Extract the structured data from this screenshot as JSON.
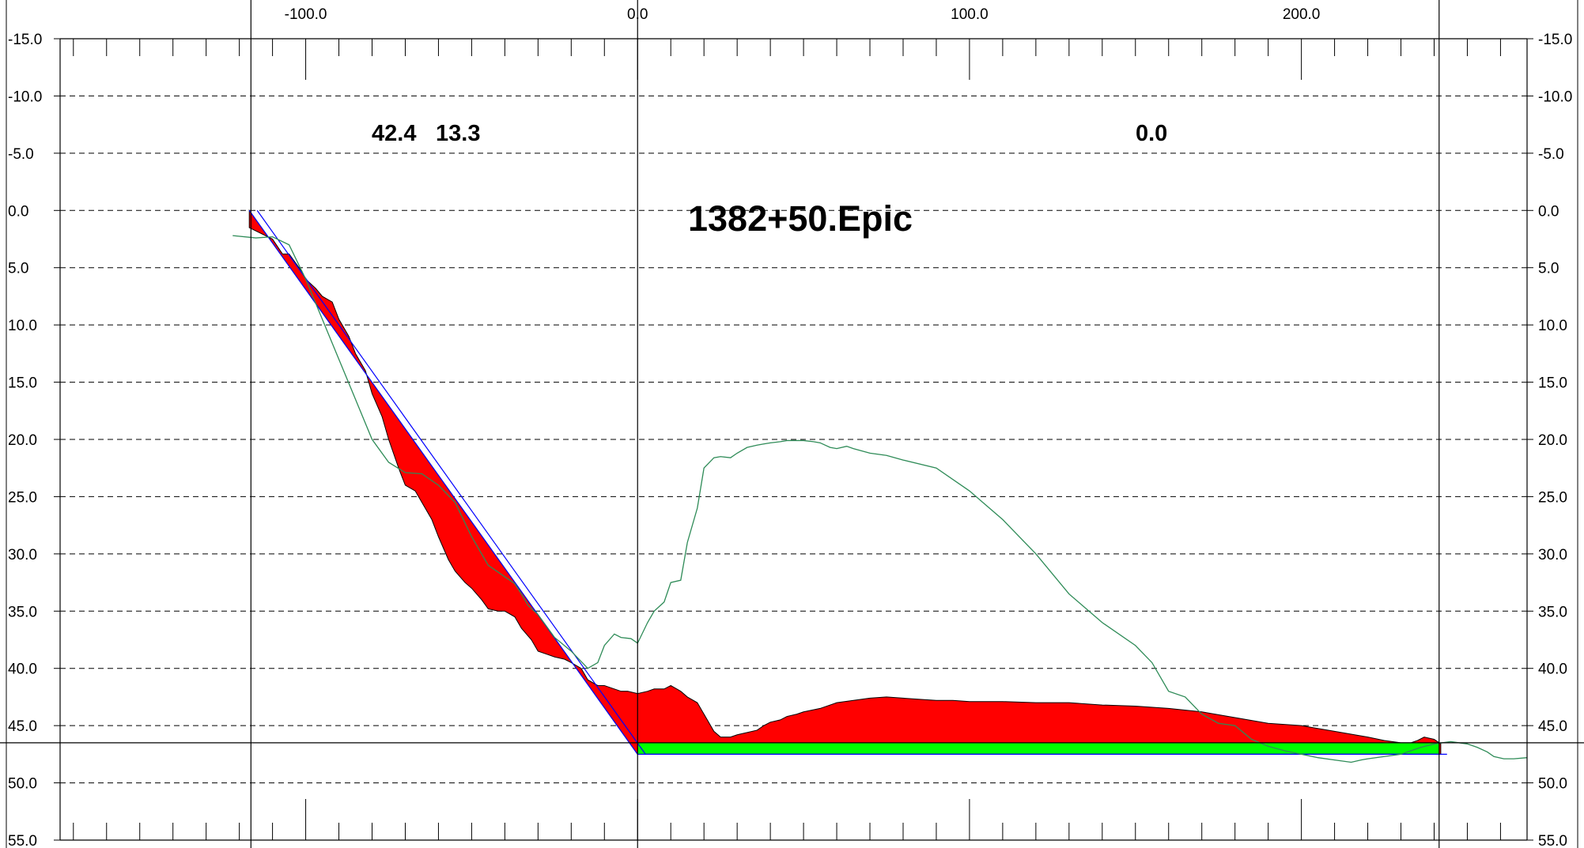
{
  "chart_data": {
    "type": "area",
    "title": "1382+50.Epic",
    "annotations": {
      "left_values": [
        "42.4",
        "13.3"
      ],
      "right_value": "0.0"
    },
    "x_tick_labels": [
      "-100.0",
      "0.0",
      "100.0",
      "200.0"
    ],
    "x_ticks": [
      -100,
      0,
      100,
      200
    ],
    "y_tick_labels": [
      "-15.0",
      "-10.0",
      "-5.0",
      "0.0",
      "5.0",
      "10.0",
      "15.0",
      "20.0",
      "25.0",
      "30.0",
      "35.0",
      "40.0",
      "45.0",
      "50.0",
      "55.0"
    ],
    "y_ticks": [
      -15,
      -10,
      -5,
      0,
      5,
      10,
      15,
      20,
      25,
      30,
      35,
      40,
      45,
      50,
      55
    ],
    "xlim": [
      -174,
      268
    ],
    "ylim": [
      -15,
      55
    ],
    "y_inverted": true,
    "grid": "dashed horizontal",
    "vertical_rules_x": [
      -116.5,
      0,
      241.5
    ],
    "horizontal_rule_y": 46.5,
    "series": [
      {
        "kind": "ground_line",
        "color": "#2e8b57",
        "x": [
          -122,
          -115,
          -110,
          -105,
          -100,
          -95,
          -90,
          -85,
          -80,
          -75,
          -70,
          -65,
          -60,
          -55,
          -50,
          -45,
          -40,
          -37,
          -35,
          -33,
          -30,
          -25,
          -20,
          -15,
          -12,
          -10,
          -7,
          -5,
          -2,
          0,
          3,
          5,
          8,
          10,
          13,
          15,
          18,
          20,
          23,
          25,
          28,
          30,
          33,
          36,
          38,
          40,
          43,
          45,
          48,
          50,
          53,
          55,
          58,
          60,
          63,
          65,
          70,
          75,
          80,
          90,
          100,
          110,
          120,
          130,
          140,
          150,
          155,
          160,
          165,
          170,
          175,
          180,
          185,
          190,
          195,
          200,
          205,
          210,
          215,
          218,
          220,
          225,
          230,
          233,
          236,
          240,
          245,
          250,
          253,
          256,
          258,
          261,
          264,
          268
        ],
        "y": [
          2.2,
          2.4,
          2.3,
          3.0,
          6.0,
          9.5,
          13.0,
          16.5,
          20.0,
          22.0,
          22.9,
          23.0,
          24.0,
          25.5,
          28.5,
          31.0,
          32.0,
          32.6,
          33.5,
          34.5,
          35.3,
          37.3,
          38.5,
          40.0,
          39.5,
          38.0,
          37.0,
          37.3,
          37.4,
          37.8,
          36.0,
          35.0,
          34.2,
          32.5,
          32.3,
          29.0,
          26.0,
          22.5,
          21.6,
          21.5,
          21.6,
          21.2,
          20.7,
          20.5,
          20.4,
          20.3,
          20.2,
          20.1,
          20.1,
          20.1,
          20.2,
          20.3,
          20.7,
          20.8,
          20.6,
          20.8,
          21.2,
          21.4,
          21.8,
          22.5,
          24.5,
          27.0,
          30.0,
          33.5,
          36.0,
          38.0,
          39.5,
          42.0,
          42.5,
          44.0,
          44.8,
          45.0,
          46.2,
          46.8,
          47.2,
          47.5,
          47.8,
          48.0,
          48.2,
          48.0,
          47.9,
          47.7,
          47.5,
          47.2,
          46.9,
          46.6,
          46.4,
          46.6,
          46.9,
          47.3,
          47.7,
          47.9,
          47.9,
          47.8
        ]
      },
      {
        "kind": "existing_surface",
        "color": "#000000",
        "x": [
          -117,
          -110,
          -107,
          -105,
          -102,
          -100,
          -97,
          -95,
          -92,
          -90,
          -87,
          -85,
          -82,
          -80,
          -77,
          -75,
          -72,
          -70,
          -67,
          -65,
          -62,
          -60,
          -57,
          -55,
          -52,
          -50,
          -47,
          -45,
          -42,
          -40,
          -37,
          -35,
          -32,
          -30,
          -27,
          -25,
          -22,
          -20,
          -17,
          -15,
          -12,
          -10,
          -7,
          -5,
          -3,
          0,
          3,
          5,
          8,
          10,
          13,
          15,
          18,
          20,
          23,
          25,
          28,
          30,
          33,
          36,
          38,
          40,
          43,
          45,
          48,
          50,
          55,
          60,
          65,
          70,
          75,
          80,
          85,
          90,
          95,
          100,
          110,
          120,
          130,
          140,
          150,
          160,
          170,
          180,
          190,
          200,
          210,
          220,
          225,
          230,
          233,
          235,
          237,
          240,
          242
        ],
        "y": [
          1.5,
          2.5,
          3.8,
          3.8,
          5.0,
          6.0,
          6.8,
          7.5,
          8.0,
          9.5,
          11.0,
          12.5,
          14.0,
          16.0,
          18.0,
          20.0,
          22.5,
          24.0,
          24.5,
          25.5,
          27.0,
          28.5,
          30.5,
          31.5,
          32.5,
          33.0,
          34.0,
          34.8,
          35.0,
          35.0,
          35.5,
          36.5,
          37.5,
          38.5,
          38.8,
          39.0,
          39.2,
          39.5,
          40.0,
          41.0,
          41.5,
          41.5,
          41.8,
          42.0,
          42.0,
          42.2,
          42.0,
          41.8,
          41.8,
          41.5,
          42.0,
          42.5,
          43.0,
          44.0,
          45.5,
          46.0,
          46.0,
          45.8,
          45.6,
          45.4,
          45.0,
          44.7,
          44.5,
          44.2,
          44.0,
          43.8,
          43.5,
          43.0,
          42.8,
          42.6,
          42.5,
          42.6,
          42.7,
          42.8,
          42.8,
          42.9,
          42.9,
          43.0,
          43.0,
          43.2,
          43.3,
          43.5,
          43.8,
          44.3,
          44.8,
          45.0,
          45.5,
          46.0,
          46.3,
          46.5,
          46.5,
          46.3,
          46.0,
          46.2,
          46.6
        ]
      },
      {
        "kind": "design_template",
        "color": "#0000ff",
        "x": [
          -117,
          0,
          241.5
        ],
        "y": [
          0.0,
          47.5,
          47.5
        ]
      }
    ],
    "fills": [
      {
        "name": "cut",
        "color": "#ff0000"
      },
      {
        "name": "fill",
        "color": "#00ff00"
      }
    ]
  }
}
